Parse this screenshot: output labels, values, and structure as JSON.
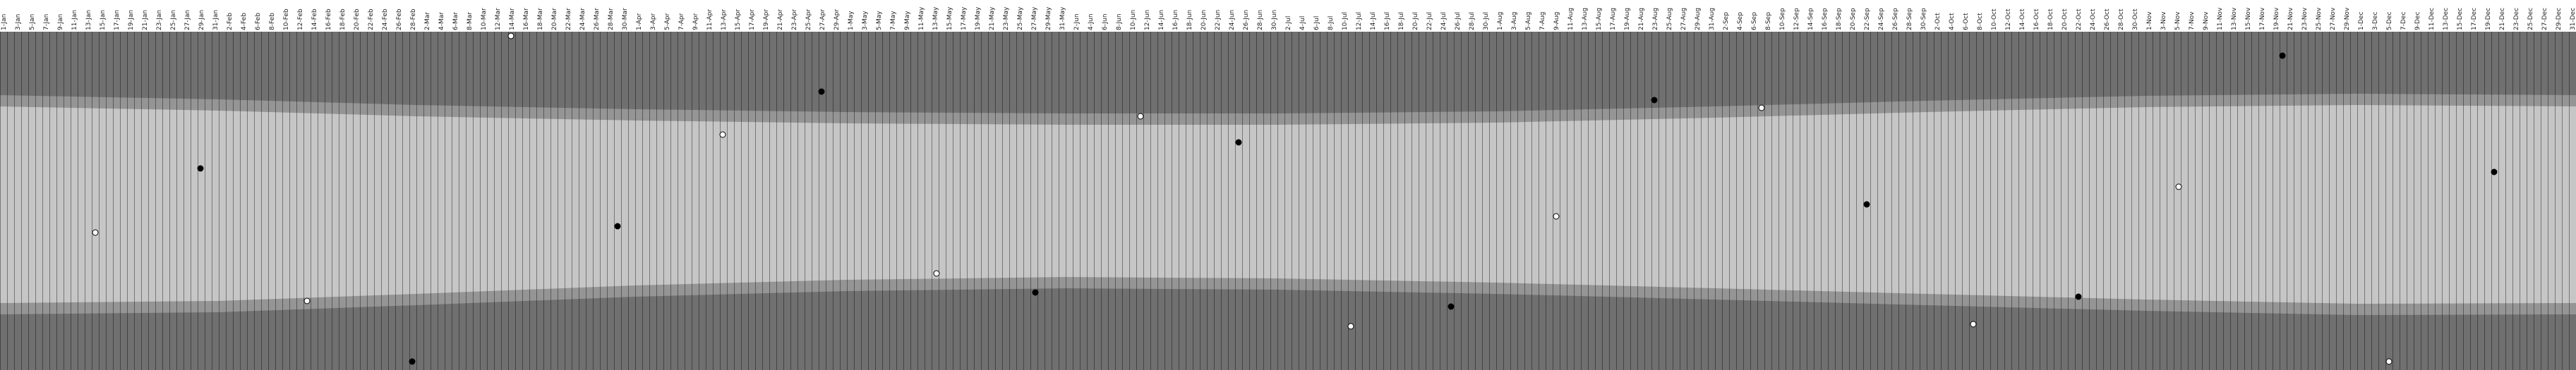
{
  "chart_data": {
    "type": "daylight",
    "categories": [
      "1-Jan",
      "3-Jan",
      "5-Jan",
      "7-Jan",
      "9-Jan",
      "11-Jan",
      "13-Jan",
      "15-Jan",
      "17-Jan",
      "19-Jan",
      "21-Jan",
      "23-Jan",
      "25-Jan",
      "27-Jan",
      "29-Jan",
      "31-Jan",
      "2-Feb",
      "4-Feb",
      "6-Feb",
      "8-Feb",
      "10-Feb",
      "12-Feb",
      "14-Feb",
      "16-Feb",
      "18-Feb",
      "20-Feb",
      "22-Feb",
      "24-Feb",
      "26-Feb",
      "28-Feb",
      "2-Mar",
      "4-Mar",
      "6-Mar",
      "8-Mar",
      "10-Mar",
      "12-Mar",
      "14-Mar",
      "16-Mar",
      "18-Mar",
      "20-Mar",
      "22-Mar",
      "24-Mar",
      "26-Mar",
      "28-Mar",
      "30-Mar",
      "1-Apr",
      "3-Apr",
      "5-Apr",
      "7-Apr",
      "9-Apr",
      "11-Apr",
      "13-Apr",
      "15-Apr",
      "17-Apr",
      "19-Apr",
      "21-Apr",
      "23-Apr",
      "25-Apr",
      "27-Apr",
      "29-Apr",
      "1-May",
      "3-May",
      "5-May",
      "7-May",
      "9-May",
      "11-May",
      "13-May",
      "15-May",
      "17-May",
      "19-May",
      "21-May",
      "23-May",
      "25-May",
      "27-May",
      "29-May",
      "31-May",
      "2-Jun",
      "4-Jun",
      "6-Jun",
      "8-Jun",
      "10-Jun",
      "12-Jun",
      "14-Jun",
      "16-Jun",
      "18-Jun",
      "20-Jun",
      "22-Jun",
      "24-Jun",
      "26-Jun",
      "28-Jun",
      "30-Jun",
      "2-Jul",
      "4-Jul",
      "6-Jul",
      "8-Jul",
      "10-Jul",
      "12-Jul",
      "14-Jul",
      "16-Jul",
      "18-Jul",
      "20-Jul",
      "22-Jul",
      "24-Jul",
      "26-Jul",
      "28-Jul",
      "30-Jul",
      "1-Aug",
      "3-Aug",
      "5-Aug",
      "7-Aug",
      "9-Aug",
      "11-Aug",
      "13-Aug",
      "15-Aug",
      "17-Aug",
      "19-Aug",
      "21-Aug",
      "23-Aug",
      "25-Aug",
      "27-Aug",
      "29-Aug",
      "31-Aug",
      "2-Sep",
      "4-Sep",
      "6-Sep",
      "8-Sep",
      "10-Sep",
      "12-Sep",
      "14-Sep",
      "16-Sep",
      "18-Sep",
      "20-Sep",
      "22-Sep",
      "24-Sep",
      "26-Sep",
      "28-Sep",
      "30-Sep",
      "2-Oct",
      "4-Oct",
      "6-Oct",
      "8-Oct",
      "10-Oct",
      "12-Oct",
      "14-Oct",
      "16-Oct",
      "18-Oct",
      "20-Oct",
      "22-Oct",
      "24-Oct",
      "26-Oct",
      "28-Oct",
      "30-Oct",
      "1-Nov",
      "3-Nov",
      "5-Nov",
      "7-Nov",
      "9-Nov",
      "11-Nov",
      "13-Nov",
      "15-Nov",
      "17-Nov",
      "19-Nov",
      "21-Nov",
      "23-Nov",
      "25-Nov",
      "27-Nov",
      "29-Nov",
      "1-Dec",
      "3-Dec",
      "5-Dec",
      "7-Dec",
      "9-Dec",
      "11-Dec",
      "13-Dec",
      "15-Dec",
      "17-Dec",
      "19-Dec",
      "21-Dec",
      "23-Dec",
      "25-Dec",
      "27-Dec",
      "29-Dec",
      "31-Dec"
    ],
    "xlim": [
      0,
      365
    ],
    "ylim": [
      0,
      24
    ],
    "days": [
      0,
      31,
      59,
      90,
      120,
      151,
      181,
      212,
      243,
      273,
      304,
      334,
      365
    ],
    "dawn": [
      4.5,
      4.8,
      5.2,
      5.5,
      5.7,
      5.8,
      5.8,
      5.65,
      5.3,
      4.9,
      4.55,
      4.4,
      4.5
    ],
    "sunrise": [
      5.3,
      5.6,
      6.0,
      6.3,
      6.5,
      6.6,
      6.6,
      6.45,
      6.1,
      5.7,
      5.35,
      5.2,
      5.3
    ],
    "sunset": [
      19.25,
      19.1,
      18.6,
      18.0,
      17.6,
      17.4,
      17.5,
      17.8,
      18.2,
      18.6,
      19.0,
      19.3,
      19.25
    ],
    "dusk": [
      20.05,
      19.9,
      19.4,
      18.8,
      18.4,
      18.2,
      18.3,
      18.6,
      19.0,
      19.4,
      19.8,
      20.1,
      20.05
    ],
    "colors": {
      "night": "#707070",
      "twilight": "#959595",
      "day": "#c6c6c6"
    },
    "full_moon": {
      "x": [
        13.5,
        43.5,
        72.4,
        102.4,
        132.7,
        161.6,
        191.4,
        220.5,
        249.6,
        279.6,
        308.7,
        338.5
      ],
      "y": [
        14.25,
        19.1,
        0.3,
        7.3,
        17.15,
        6.0,
        20.9,
        13.1,
        5.4,
        20.75,
        11.0,
        23.4
      ],
      "color": "#ffffff"
    },
    "new_moon": {
      "x": [
        28.4,
        58.4,
        87.5,
        116.4,
        146.7,
        175.5,
        205.6,
        234.4,
        264.5,
        294.5,
        323.4,
        353.4
      ],
      "y": [
        9.7,
        23.4,
        13.8,
        4.25,
        18.5,
        7.85,
        19.5,
        4.85,
        12.25,
        18.8,
        1.7,
        9.95
      ],
      "color": "#000000"
    }
  }
}
